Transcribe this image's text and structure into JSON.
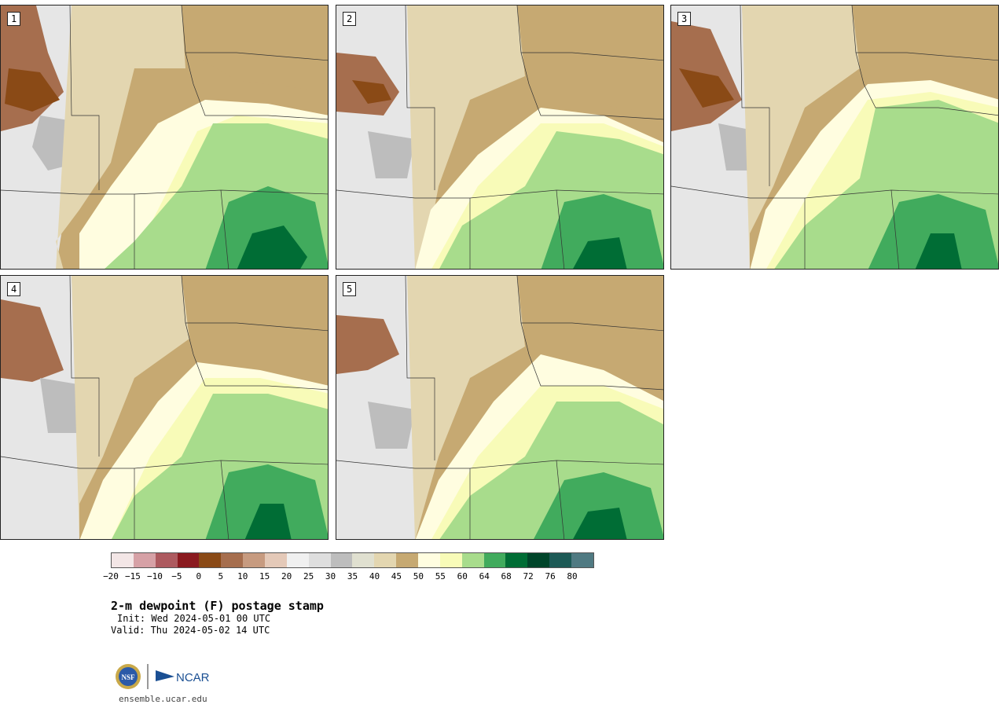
{
  "stamps": [
    {
      "label": "1"
    },
    {
      "label": "2"
    },
    {
      "label": "3"
    },
    {
      "label": "4"
    },
    {
      "label": "5"
    }
  ],
  "colorbar": {
    "colors": [
      "#f3e6e6",
      "#d6a1a6",
      "#ad5a5f",
      "#8a1a1f",
      "#8a4a16",
      "#a66e4e",
      "#c79b80",
      "#e4c9b8",
      "#f0f0f0",
      "#dedede",
      "#bdbdbd",
      "#e0e0d0",
      "#e3d6b0",
      "#c6a972",
      "#fffde0",
      "#f8fbb8",
      "#a8dc8c",
      "#41ab5d",
      "#006d35",
      "#00452a",
      "#1d5a56",
      "#507a82"
    ],
    "tick_labels": [
      "−20",
      "−15",
      "−10",
      "−5",
      "0",
      "5",
      "10",
      "15",
      "20",
      "25",
      "30",
      "35",
      "40",
      "45",
      "50",
      "55",
      "60",
      "64",
      "68",
      "72",
      "76",
      "80"
    ]
  },
  "title": "2-m dewpoint (F) postage stamp",
  "init": "Init: Wed 2024-05-01 00 UTC",
  "valid": "Valid: Thu 2024-05-02 14 UTC",
  "logos": {
    "nsf": "NSF",
    "ncar": "NCAR"
  },
  "site": "ensemble.ucar.edu"
}
